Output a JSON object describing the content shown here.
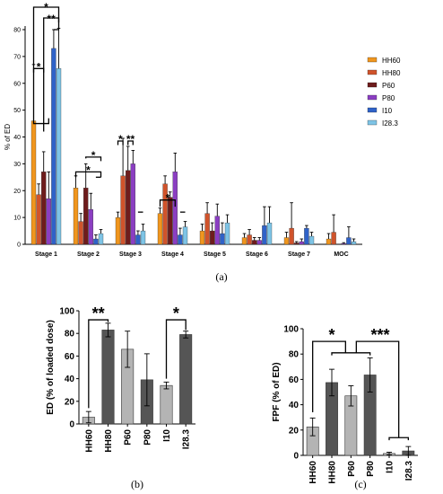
{
  "chart_data": [
    {
      "type": "bar",
      "panel_label": "(a)",
      "ylabel": "% of  ED",
      "ylim": [
        0,
        80
      ],
      "yticks": [
        0,
        10,
        20,
        30,
        40,
        50,
        60,
        70,
        80
      ],
      "categories": [
        "Stage 1",
        "Stage 2",
        "Stage 3",
        "Stage 4",
        "Stage 5",
        "Stage 6",
        "Stage 7",
        "MOC"
      ],
      "legend_position": "right",
      "series": [
        {
          "name": "HH60",
          "color": "#f0961e",
          "values": [
            46,
            21,
            10,
            11.5,
            5,
            2.5,
            2.5,
            2
          ],
          "errors": [
            21,
            4.5,
            2,
            2,
            2.5,
            1.5,
            2,
            2
          ]
        },
        {
          "name": "HH80",
          "color": "#d0532b",
          "values": [
            18.5,
            8.5,
            25.5,
            22.5,
            11.5,
            3.5,
            6,
            4.5
          ],
          "errors": [
            4,
            3,
            14,
            3,
            4,
            2,
            9.5,
            6.5
          ]
        },
        {
          "name": "P60",
          "color": "#6e1c1c",
          "values": [
            27,
            21,
            27.5,
            17.5,
            5,
            1.5,
            0.5,
            0
          ],
          "errors": [
            7.5,
            9,
            9,
            2,
            3,
            1,
            0.5,
            0
          ]
        },
        {
          "name": "P80",
          "color": "#8b3ec2",
          "values": [
            17,
            13,
            30,
            27,
            10.5,
            1.5,
            1,
            0.3
          ],
          "errors": [
            10,
            6,
            5,
            7,
            4.5,
            1,
            1,
            0.3
          ]
        },
        {
          "name": "I10",
          "color": "#2f62c8",
          "values": [
            73,
            2,
            3.5,
            3.5,
            4,
            7,
            6,
            2.5
          ],
          "errors": [
            7,
            1.5,
            1.5,
            2.5,
            4,
            7,
            1,
            4
          ]
        },
        {
          "name": "I28.3",
          "color": "#7ec4e6",
          "values": [
            65.5,
            4,
            5,
            6.5,
            8,
            8,
            3,
            1
          ],
          "errors": [
            15,
            1.5,
            2.5,
            2,
            3,
            6,
            1.5,
            1
          ]
        }
      ],
      "significance": [
        "*",
        "*",
        "**",
        "*",
        "*",
        "*",
        "**",
        "*"
      ]
    },
    {
      "type": "bar",
      "panel_label": "(b)",
      "ylabel": "ED (% of loaded dose)",
      "ylim": [
        0,
        100
      ],
      "yticks": [
        0,
        20,
        40,
        60,
        80,
        100
      ],
      "categories": [
        "HH60",
        "HH80",
        "P60",
        "P80",
        "I10",
        "I28.3"
      ],
      "values": [
        6,
        83,
        66,
        39,
        34,
        79
      ],
      "errors": [
        5,
        6,
        16,
        23,
        3,
        3
      ],
      "colors": [
        "#b4b4b4",
        "#555555",
        "#b4b4b4",
        "#555555",
        "#b4b4b4",
        "#555555"
      ],
      "significance": [
        "**",
        "*"
      ]
    },
    {
      "type": "bar",
      "panel_label": "(c)",
      "ylabel": "FPF (% of ED)",
      "ylim": [
        0,
        100
      ],
      "yticks": [
        0,
        20,
        40,
        60,
        80,
        100
      ],
      "categories": [
        "HH60",
        "HH80",
        "P60",
        "P80",
        "I10",
        "I28.3"
      ],
      "values": [
        22.5,
        57.5,
        47,
        63.5,
        1.5,
        3.5
      ],
      "errors": [
        7,
        10.5,
        8,
        13.5,
        1,
        3.5
      ],
      "colors": [
        "#b4b4b4",
        "#555555",
        "#b4b4b4",
        "#555555",
        "#b4b4b4",
        "#555555"
      ],
      "significance": [
        "*",
        "***"
      ]
    }
  ]
}
